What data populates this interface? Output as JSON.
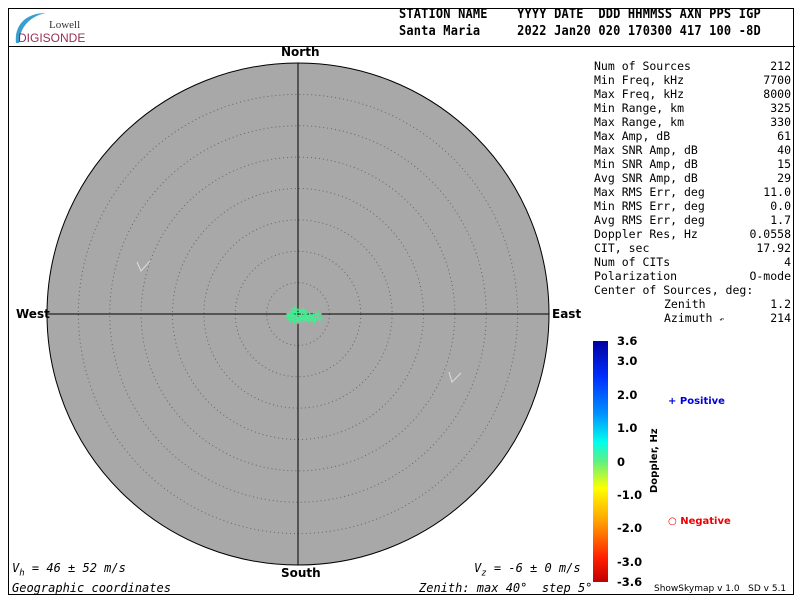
{
  "logo": {
    "top": "Lowell",
    "bottom": "DIGISONDE"
  },
  "header": {
    "labels": "STATION NAME    YYYY DATE  DDD HHMMSS AXN PPS IGP",
    "values": "Santa Maria     2022 Jan20 020 170300 417 100 -8D"
  },
  "stats": [
    {
      "label": "Num of Sources",
      "value": "212"
    },
    {
      "label": "Min Freq, kHz",
      "value": "7700"
    },
    {
      "label": "Max Freq, kHz",
      "value": "8000"
    },
    {
      "label": "Min Range, km",
      "value": "325"
    },
    {
      "label": "Max Range, km",
      "value": "330"
    },
    {
      "label": "Max Amp, dB",
      "value": "61"
    },
    {
      "label": "Max SNR Amp, dB",
      "value": "40"
    },
    {
      "label": "Min SNR Amp, dB",
      "value": "15"
    },
    {
      "label": "Avg SNR Amp, dB",
      "value": "29"
    },
    {
      "label": "Max RMS Err, deg",
      "value": "11.0"
    },
    {
      "label": "Min RMS Err, deg",
      "value": "0.0"
    },
    {
      "label": "Avg RMS Err, deg",
      "value": "1.7"
    },
    {
      "label": "Doppler Res, Hz",
      "value": "0.0558"
    },
    {
      "label": "CIT, sec",
      "value": "17.92"
    },
    {
      "label": "Num of CITs",
      "value": "4"
    },
    {
      "label": "Polarization",
      "value": "O-mode"
    }
  ],
  "center": {
    "title": "Center of Sources, deg:",
    "zenith_label": "Zenith",
    "zenith": "1.2",
    "azimuth_label": "Azimuth",
    "azimuth": "214"
  },
  "directions": {
    "north": "North",
    "south": "South",
    "east": "East",
    "west": "West"
  },
  "footer": {
    "vh": "= 46 ± 52 m/s",
    "vz": "= -6 ± 0 m/s",
    "coords": "Geographic coordinates",
    "zenith_info": "Zenith: max 40°  step 5°",
    "version": "ShowSkymap v 1.0   SD v 5.1"
  },
  "legend": {
    "positive": "Positive",
    "negative": "Negative",
    "positive_color": "#0000dd",
    "negative_color": "#ee0000"
  },
  "chart_data": {
    "type": "scatter",
    "title": "",
    "zenith_max": 40,
    "zenith_step": 5,
    "background": "#a8a8a8",
    "colorbar": {
      "label": "Doppler, Hz",
      "range": [
        -3.6,
        3.6
      ],
      "ticks": [
        "3.6",
        "3.0",
        "2.0",
        "1.0",
        "0",
        "-1.0",
        "-2.0",
        "-3.0",
        "-3.6"
      ]
    },
    "points_east_north_deg": [
      [
        -0.8,
        0.4
      ],
      [
        -0.5,
        0.8
      ],
      [
        0.2,
        0.6
      ],
      [
        0.6,
        0.3
      ],
      [
        1.0,
        0.1
      ],
      [
        1.4,
        -0.2
      ],
      [
        1.9,
        -0.4
      ],
      [
        2.5,
        -0.1
      ],
      [
        3.2,
        0.0
      ],
      [
        3.5,
        -0.8
      ],
      [
        -1.5,
        -0.4
      ],
      [
        -1.2,
        -0.9
      ],
      [
        -0.6,
        -0.5
      ],
      [
        -0.2,
        -0.2
      ],
      [
        0.3,
        -0.7
      ],
      [
        0.8,
        -0.9
      ],
      [
        1.2,
        -0.5
      ],
      [
        1.6,
        -1.0
      ],
      [
        2.2,
        -0.8
      ],
      [
        2.8,
        -0.6
      ],
      [
        -0.9,
        -0.2
      ],
      [
        -0.3,
        0.2
      ],
      [
        0.5,
        -0.3
      ],
      [
        1.1,
        -0.7
      ],
      [
        1.8,
        -0.2
      ],
      [
        -1.3,
        0.0
      ],
      [
        0.0,
        -1.0
      ],
      [
        2.6,
        -1.1
      ],
      [
        0.9,
        0.5
      ],
      [
        -0.6,
        -1.1
      ]
    ],
    "point_doppler_hz": 0.6
  }
}
